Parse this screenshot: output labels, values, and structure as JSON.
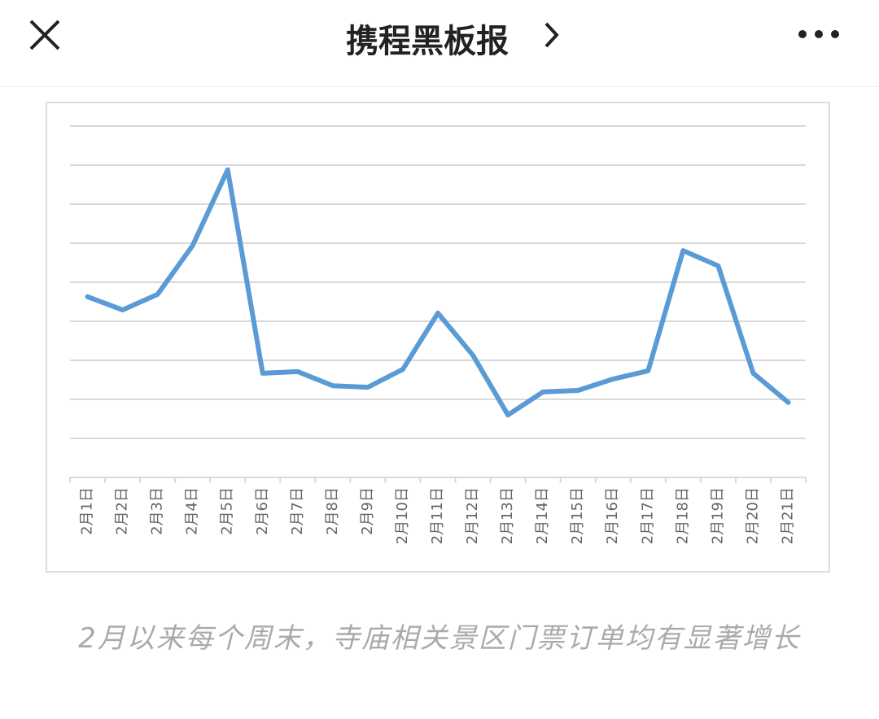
{
  "header": {
    "title": "携程黑板报"
  },
  "chart_data": {
    "type": "line",
    "categories": [
      "2月1日",
      "2月2日",
      "2月3日",
      "2月4日",
      "2月5日",
      "2月6日",
      "2月7日",
      "2月8日",
      "2月9日",
      "2月10日",
      "2月11日",
      "2月12日",
      "2月13日",
      "2月14日",
      "2月15日",
      "2月16日",
      "2月17日",
      "2月18日",
      "2月19日",
      "2月20日",
      "2月21日"
    ],
    "series": [
      {
        "color": "#5b9bd5",
        "values": [
          4.63,
          4.29,
          4.69,
          5.94,
          7.88,
          2.67,
          2.71,
          2.35,
          2.31,
          2.77,
          4.21,
          3.13,
          1.6,
          2.19,
          2.23,
          2.52,
          2.73,
          5.81,
          5.42,
          2.67,
          1.92
        ]
      }
    ],
    "ylim": [
      0,
      9
    ],
    "yticks": [
      0,
      1,
      2,
      3,
      4,
      5,
      6,
      7,
      8,
      9
    ],
    "grid": true
  },
  "caption": "2月以来每个周末，寺庙相关景区门票订单均有显著增长"
}
